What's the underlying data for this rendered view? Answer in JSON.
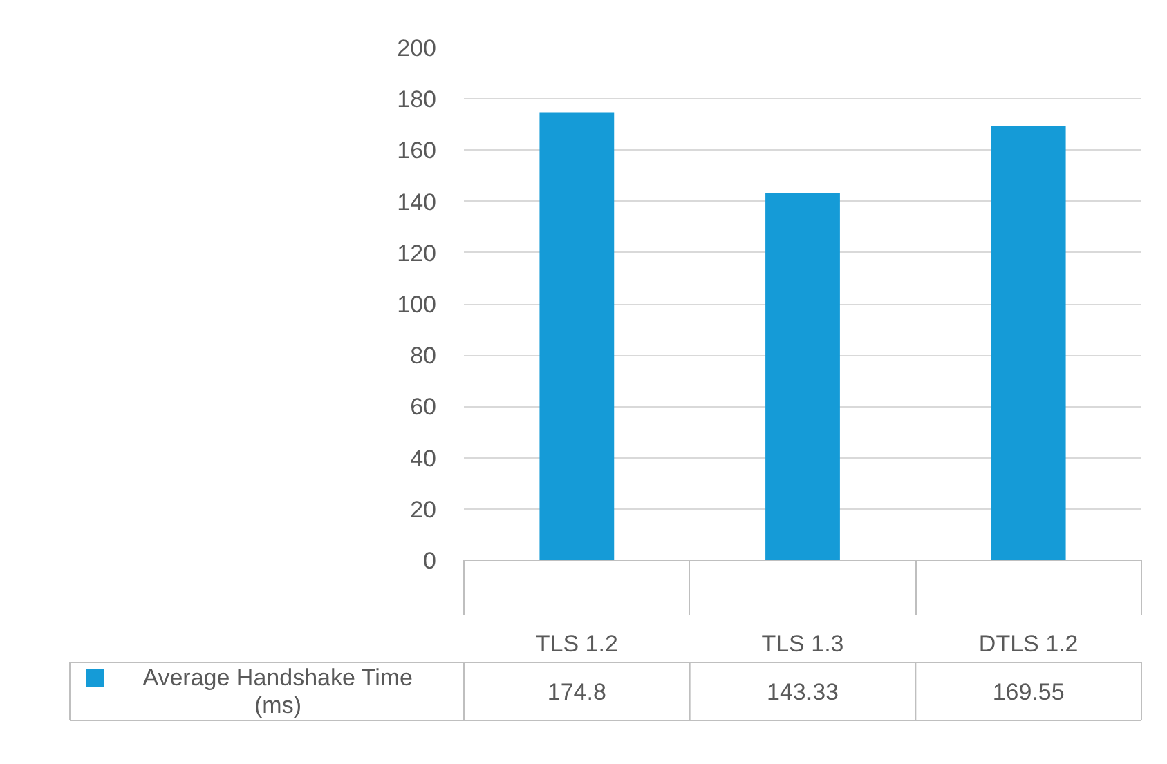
{
  "chart_data": {
    "type": "bar",
    "categories": [
      "TLS 1.2",
      "TLS 1.3",
      "DTLS 1.2"
    ],
    "series": [
      {
        "name": "Average Handshake Time (ms)",
        "color": "#159bd7",
        "values": [
          174.8,
          143.33,
          169.55
        ]
      }
    ],
    "ylim": [
      0,
      200
    ],
    "yticks": [
      0,
      20,
      40,
      60,
      80,
      100,
      120,
      140,
      160,
      180,
      200
    ],
    "grid": "y",
    "data_labels": true,
    "legend": "bottom"
  }
}
